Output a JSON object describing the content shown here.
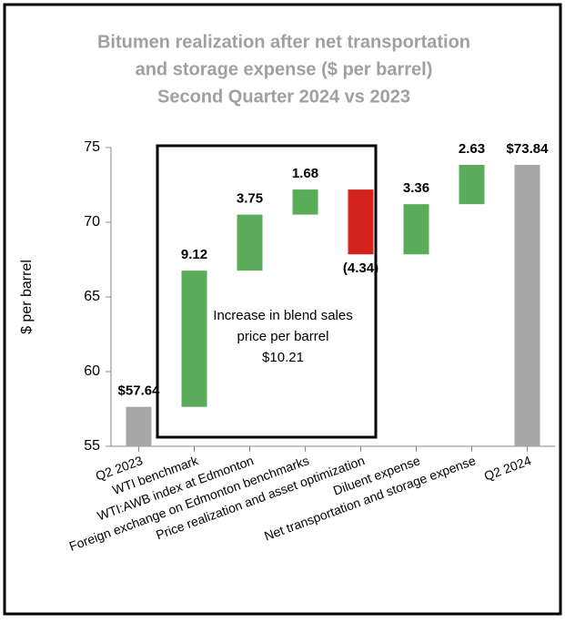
{
  "chart_data": {
    "type": "waterfall",
    "title": [
      "Bitumen realization after net transportation",
      "and storage expense ($ per barrel)",
      "Second Quarter 2024 vs 2023"
    ],
    "ylabel": "$ per barrel",
    "categories": [
      "Q2 2023",
      "WTI benchmark",
      "WTI:AWB index at Edmonton",
      "Foreign exchange on Edmonton benchmarks",
      "Price realization and asset optimization",
      "Diluent expense",
      "Net transportation and storage expense",
      "Q2 2024"
    ],
    "values": [
      57.64,
      9.12,
      3.75,
      1.68,
      -4.34,
      3.36,
      2.63,
      73.84
    ],
    "value_labels": [
      "$57.64",
      "9.12",
      "3.75",
      "1.68",
      "(4.34)",
      "3.36",
      "2.63",
      "$73.84"
    ],
    "totals": [
      true,
      false,
      false,
      false,
      false,
      false,
      false,
      true
    ],
    "colors": {
      "total": "#a6a6a6",
      "increase": "#5aac5a",
      "decrease": "#d4231d"
    },
    "ylim": [
      55,
      75
    ],
    "yticks": [
      55,
      60,
      65,
      70,
      75
    ],
    "annotation": [
      "Increase in blend sales",
      "price per barrel",
      "$10.21"
    ]
  }
}
